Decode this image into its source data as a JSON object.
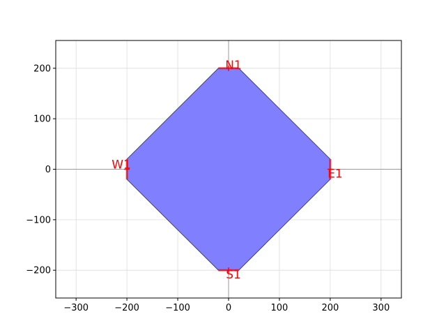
{
  "chart_data": {
    "type": "scatter",
    "title": "",
    "xlabel": "",
    "ylabel": "",
    "xlim": [
      -340,
      340
    ],
    "ylim": [
      -255,
      255
    ],
    "xticks": [
      -300,
      -200,
      -100,
      0,
      100,
      200,
      300
    ],
    "yticks": [
      -200,
      -100,
      0,
      100,
      200
    ],
    "xtick_labels": [
      "−300",
      "−200",
      "−100",
      "0",
      "100",
      "200",
      "300"
    ],
    "ytick_labels": [
      "−200",
      "−100",
      "0",
      "100",
      "200"
    ],
    "grid": true,
    "polygon": {
      "vertices": [
        [
          -20,
          200
        ],
        [
          20,
          200
        ],
        [
          200,
          20
        ],
        [
          200,
          -20
        ],
        [
          20,
          -200
        ],
        [
          -20,
          -200
        ],
        [
          -200,
          -20
        ],
        [
          -200,
          20
        ]
      ],
      "fill_color": "#8080ff",
      "edge_color": "#40406a"
    },
    "ports": [
      {
        "name": "N1",
        "x": 0,
        "y": 200,
        "orientation": "horizontal",
        "width": 40
      },
      {
        "name": "E1",
        "x": 200,
        "y": 0,
        "orientation": "vertical",
        "width": 40
      },
      {
        "name": "S1",
        "x": 0,
        "y": -200,
        "orientation": "horizontal",
        "width": 40
      },
      {
        "name": "W1",
        "x": -200,
        "y": 0,
        "orientation": "vertical",
        "width": 40
      }
    ],
    "port_color": "#ff0000"
  }
}
